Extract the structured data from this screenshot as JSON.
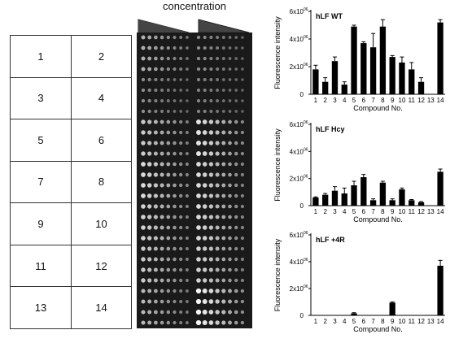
{
  "header": {
    "concentration_label": "concentration"
  },
  "grid": {
    "labels": [
      "1",
      "2",
      "3",
      "4",
      "5",
      "6",
      "7",
      "8",
      "9",
      "10",
      "11",
      "12",
      "13",
      "14"
    ]
  },
  "dot_blot": {
    "description_free": true
  },
  "chart_data": [
    {
      "type": "bar",
      "title": "hLF WT",
      "xlabel": "Compound No.",
      "ylabel": "Fluorescence intensity",
      "categories": [
        "1",
        "2",
        "3",
        "4",
        "5",
        "6",
        "7",
        "8",
        "9",
        "10",
        "11",
        "12",
        "13",
        "14"
      ],
      "values": [
        1.8,
        0.9,
        2.4,
        0.7,
        4.9,
        3.7,
        3.4,
        4.9,
        2.7,
        2.3,
        1.8,
        0.9,
        0,
        5.2
      ],
      "errors": [
        0.3,
        0.3,
        0.3,
        0.2,
        0.1,
        0.1,
        1.0,
        0.5,
        0.1,
        0.4,
        0.5,
        0.3,
        0,
        0.2
      ],
      "ylim": [
        0,
        6
      ],
      "yticks": [
        "0",
        "2x10",
        "4x10",
        "6x10"
      ],
      "ytick_exp": "06"
    },
    {
      "type": "bar",
      "title": "hLF Hcy",
      "xlabel": "Compound No.",
      "ylabel": "Fluorescence intensity",
      "categories": [
        "1",
        "2",
        "3",
        "4",
        "5",
        "6",
        "7",
        "8",
        "9",
        "10",
        "11",
        "12",
        "13",
        "14"
      ],
      "values": [
        0.6,
        0.8,
        1.1,
        0.9,
        1.5,
        2.1,
        0.4,
        1.7,
        0.4,
        1.2,
        0.4,
        0.25,
        0,
        2.5
      ],
      "errors": [
        0.05,
        0.1,
        0.3,
        0.4,
        0.3,
        0.2,
        0.1,
        0.1,
        0.1,
        0.1,
        0.05,
        0.05,
        0,
        0.2
      ],
      "ylim": [
        0,
        6
      ],
      "yticks": [
        "0",
        "2x10",
        "4x10",
        "6x10"
      ],
      "ytick_exp": "06"
    },
    {
      "type": "bar",
      "title": "hLF +4R",
      "xlabel": "Compound No.",
      "ylabel": "Fluorescence intensity",
      "categories": [
        "1",
        "2",
        "3",
        "4",
        "5",
        "6",
        "7",
        "8",
        "9",
        "10",
        "11",
        "12",
        "13",
        "14"
      ],
      "values": [
        0,
        0,
        0,
        0,
        0.15,
        0,
        0,
        0,
        0.95,
        0,
        0,
        0,
        0,
        3.7
      ],
      "errors": [
        0,
        0,
        0,
        0,
        0.05,
        0,
        0,
        0,
        0.05,
        0,
        0,
        0,
        0,
        0.4
      ],
      "ylim": [
        0,
        6
      ],
      "yticks": [
        "0",
        "2x10",
        "4x10",
        "6x10"
      ],
      "ytick_exp": "06"
    }
  ]
}
